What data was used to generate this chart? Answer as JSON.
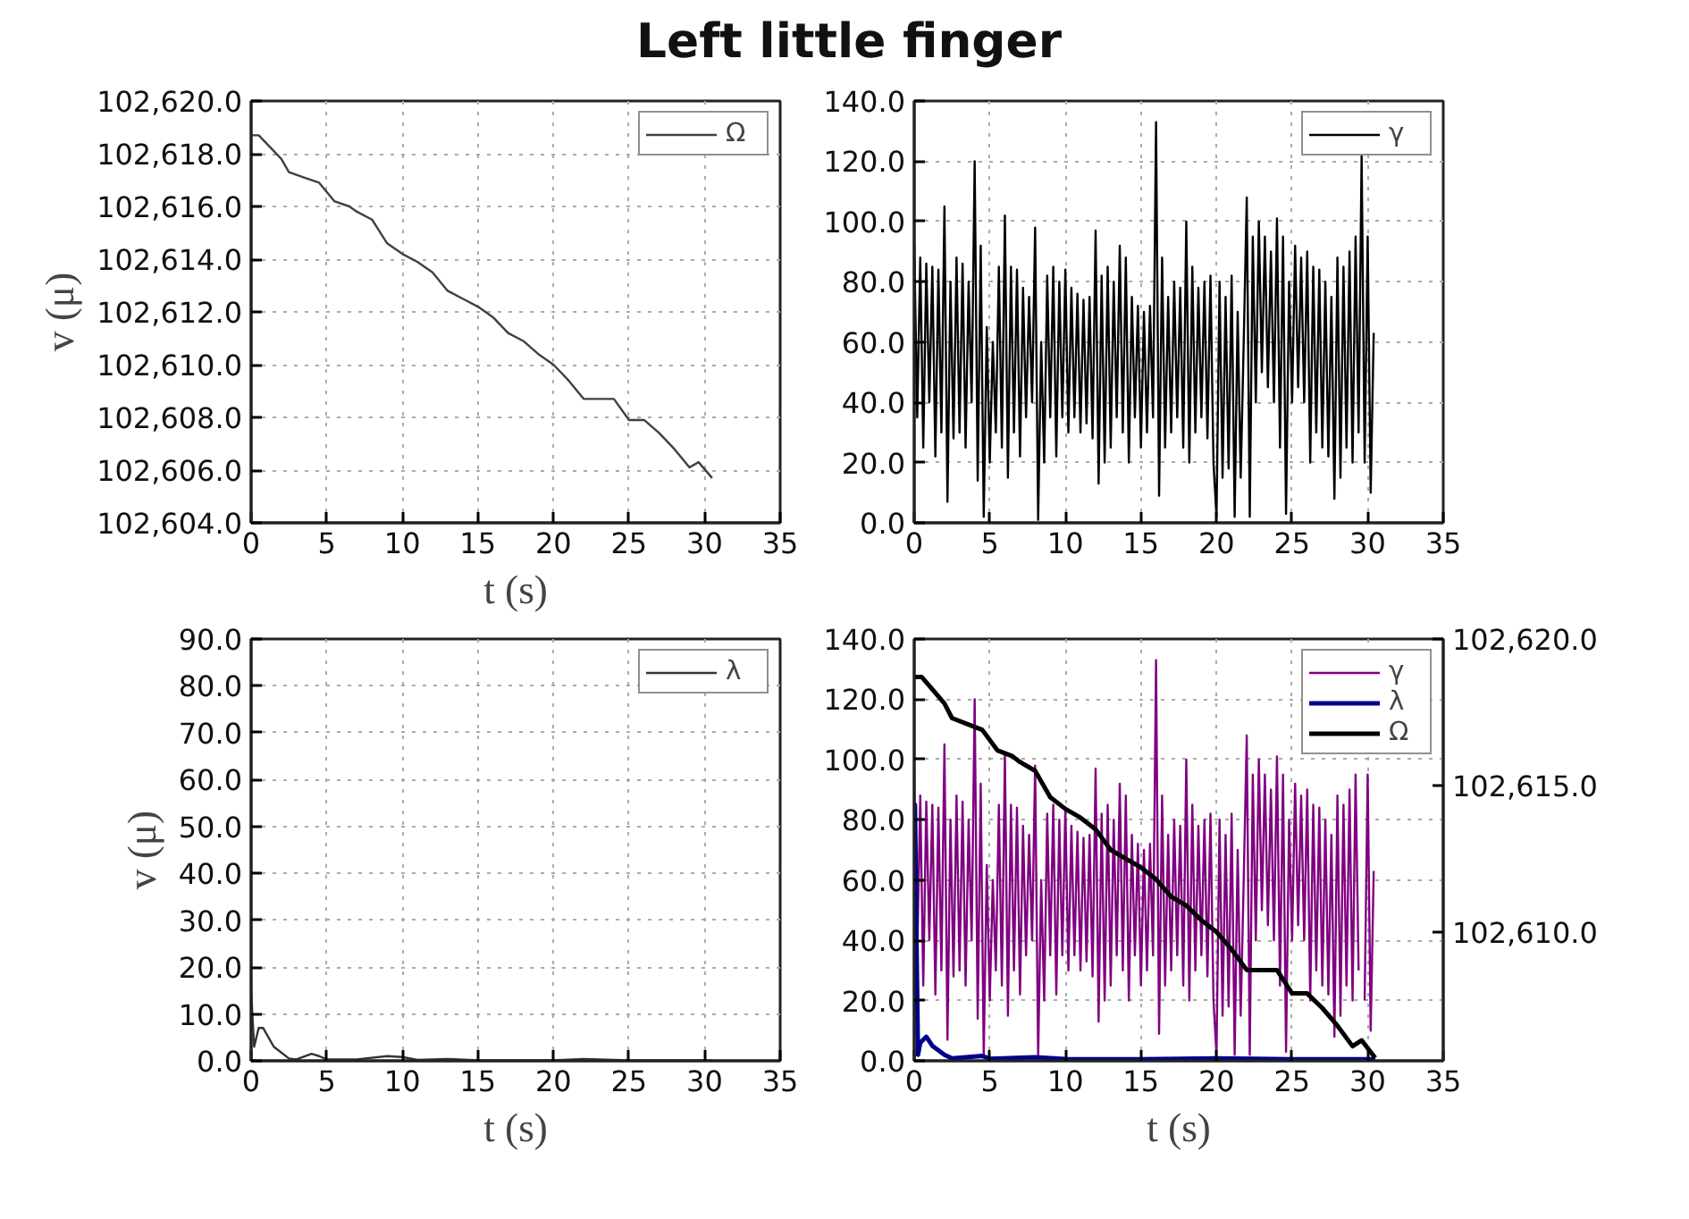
{
  "chart_data": [
    {
      "type": "line",
      "title": "Left little finger",
      "xlabel": "t (s)",
      "ylabel": "v (μ)",
      "xlim": [
        0,
        35
      ],
      "xticks": [
        0,
        5,
        10,
        15,
        20,
        25,
        30,
        35
      ],
      "ylim": [
        102604,
        102620
      ],
      "yticks": [
        {
          "value": 102604,
          "label": "102,604.0"
        },
        {
          "value": 102606,
          "label": "102,606.0"
        },
        {
          "value": 102608,
          "label": "102,608.0"
        },
        {
          "value": 102610,
          "label": "102,610.0"
        },
        {
          "value": 102612,
          "label": "102,612.0"
        },
        {
          "value": 102614,
          "label": "102,614.0"
        },
        {
          "value": 102616,
          "label": "102,616.0"
        },
        {
          "value": 102618,
          "label": "102,618.0"
        },
        {
          "value": 102620,
          "label": "102,620.0"
        }
      ],
      "grid": true,
      "legend": "top right",
      "series": [
        {
          "name": "Ω",
          "color": "#404040",
          "x": [
            0,
            0.5,
            1,
            2,
            2.5,
            3.5,
            4.5,
            5.5,
            6.5,
            7,
            8,
            9,
            10,
            11,
            12,
            13,
            14,
            15,
            16,
            17,
            18,
            19,
            20,
            21,
            22,
            23,
            24,
            25,
            26,
            27,
            28,
            29,
            29.6,
            30.5
          ],
          "values": [
            102618.7,
            102618.7,
            102618.4,
            102617.8,
            102617.3,
            102617.1,
            102616.9,
            102616.2,
            102616.0,
            102615.8,
            102615.5,
            102614.6,
            102614.2,
            102613.9,
            102613.5,
            102612.8,
            102612.5,
            102612.2,
            102611.8,
            102611.2,
            102610.9,
            102610.4,
            102610.0,
            102609.4,
            102608.7,
            102608.7,
            102608.7,
            102607.9,
            102607.9,
            102607.4,
            102606.8,
            102606.1,
            102606.3,
            102605.7
          ]
        }
      ]
    },
    {
      "type": "line",
      "xlim": [
        0,
        35
      ],
      "xticks": [
        0,
        5,
        10,
        15,
        20,
        25,
        30,
        35
      ],
      "ylim": [
        0,
        140
      ],
      "yticks": [
        {
          "value": 0,
          "label": "0.0"
        },
        {
          "value": 20,
          "label": "20.0"
        },
        {
          "value": 40,
          "label": "40.0"
        },
        {
          "value": 60,
          "label": "60.0"
        },
        {
          "value": 80,
          "label": "80.0"
        },
        {
          "value": 100,
          "label": "100.0"
        },
        {
          "value": 120,
          "label": "120.0"
        },
        {
          "value": 140,
          "label": "140.0"
        }
      ],
      "grid": true,
      "legend": "top right",
      "series": [
        {
          "name": "γ",
          "color": "#000000",
          "x": [
            0,
            0.2,
            0.4,
            0.6,
            0.8,
            1,
            1.2,
            1.4,
            1.6,
            1.8,
            2,
            2.2,
            2.4,
            2.6,
            2.8,
            3,
            3.2,
            3.4,
            3.6,
            3.8,
            4,
            4.2,
            4.4,
            4.6,
            4.8,
            5,
            5.2,
            5.4,
            5.6,
            5.8,
            6,
            6.2,
            6.4,
            6.6,
            6.8,
            7,
            7.2,
            7.4,
            7.6,
            7.8,
            8,
            8.2,
            8.4,
            8.6,
            8.8,
            9,
            9.2,
            9.4,
            9.6,
            9.8,
            10,
            10.2,
            10.4,
            10.6,
            10.8,
            11,
            11.2,
            11.4,
            11.6,
            11.8,
            12,
            12.2,
            12.4,
            12.6,
            12.8,
            13,
            13.2,
            13.4,
            13.6,
            13.8,
            14,
            14.2,
            14.4,
            14.6,
            14.8,
            15,
            15.2,
            15.4,
            15.6,
            15.8,
            16,
            16.2,
            16.4,
            16.6,
            16.8,
            17,
            17.2,
            17.4,
            17.6,
            17.8,
            18,
            18.2,
            18.4,
            18.6,
            18.8,
            19,
            19.2,
            19.4,
            19.6,
            19.8,
            20,
            20.2,
            20.4,
            20.6,
            20.8,
            21,
            21.2,
            21.4,
            21.6,
            21.8,
            22,
            22.2,
            22.4,
            22.6,
            22.8,
            23,
            23.2,
            23.4,
            23.6,
            23.8,
            24,
            24.2,
            24.4,
            24.6,
            24.8,
            25,
            25.2,
            25.4,
            25.6,
            25.8,
            26,
            26.2,
            26.4,
            26.6,
            26.8,
            27,
            27.2,
            27.4,
            27.6,
            27.8,
            28,
            28.2,
            28.4,
            28.6,
            28.8,
            29,
            29.2,
            29.4,
            29.6,
            29.8,
            30,
            30.2,
            30.4
          ],
          "values": [
            93,
            35,
            88,
            25,
            86,
            40,
            85,
            22,
            84,
            30,
            105,
            7,
            80,
            28,
            88,
            30,
            86,
            25,
            80,
            40,
            120,
            14,
            92,
            2,
            65,
            20,
            60,
            30,
            85,
            25,
            102,
            15,
            85,
            30,
            84,
            22,
            78,
            35,
            75,
            40,
            98,
            1,
            60,
            20,
            82,
            35,
            85,
            22,
            80,
            35,
            84,
            30,
            78,
            35,
            76,
            30,
            74,
            33,
            75,
            28,
            97,
            13,
            82,
            20,
            85,
            25,
            80,
            35,
            92,
            30,
            88,
            20,
            75,
            35,
            72,
            25,
            70,
            30,
            72,
            35,
            133,
            9,
            88,
            25,
            75,
            30,
            80,
            35,
            78,
            25,
            100,
            20,
            85,
            30,
            78,
            35,
            80,
            28,
            82,
            20,
            2,
            80,
            15,
            75,
            18,
            82,
            2,
            70,
            15,
            60,
            108,
            2,
            95,
            40,
            100,
            50,
            95,
            45,
            90,
            40,
            101,
            25,
            95,
            3,
            80,
            40,
            92,
            45,
            88,
            40,
            90,
            20,
            85,
            30,
            84,
            25,
            80,
            22,
            75,
            8,
            88,
            15,
            85,
            25,
            90,
            20,
            95,
            30,
            122,
            20,
            95,
            10,
            63
          ]
        }
      ]
    },
    {
      "type": "line",
      "xlabel": "t (s)",
      "ylabel": "v (μ)",
      "xlim": [
        0,
        35
      ],
      "xticks": [
        0,
        5,
        10,
        15,
        20,
        25,
        30,
        35
      ],
      "ylim": [
        0,
        90
      ],
      "yticks": [
        {
          "value": 0,
          "label": "0.0"
        },
        {
          "value": 10,
          "label": "10.0"
        },
        {
          "value": 20,
          "label": "20.0"
        },
        {
          "value": 30,
          "label": "30.0"
        },
        {
          "value": 40,
          "label": "40.0"
        },
        {
          "value": 50,
          "label": "50.0"
        },
        {
          "value": 60,
          "label": "60.0"
        },
        {
          "value": 70,
          "label": "70.0"
        },
        {
          "value": 80,
          "label": "80.0"
        },
        {
          "value": 90,
          "label": "90.0"
        }
      ],
      "grid": true,
      "legend": "top right",
      "series": [
        {
          "name": "λ",
          "color": "#333333",
          "x": [
            0,
            0.2,
            0.5,
            0.8,
            1.5,
            2.5,
            3,
            4,
            4.5,
            5,
            7,
            9,
            10,
            11,
            13,
            15,
            20,
            22,
            25,
            30.5
          ],
          "values": [
            15,
            3,
            7,
            7,
            3,
            0.5,
            0.3,
            1.5,
            1.0,
            0.3,
            0.3,
            1.0,
            0.8,
            0.2,
            0.4,
            0.1,
            0.1,
            0.4,
            0.1,
            0.1
          ]
        }
      ]
    },
    {
      "type": "line",
      "xlabel": "t (s)",
      "xlim": [
        0,
        35
      ],
      "xticks": [
        0,
        5,
        10,
        15,
        20,
        25,
        30,
        35
      ],
      "ylim": [
        0,
        140
      ],
      "yticks": [
        {
          "value": 0,
          "label": "0.0"
        },
        {
          "value": 20,
          "label": "20.0"
        },
        {
          "value": 40,
          "label": "40.0"
        },
        {
          "value": 60,
          "label": "60.0"
        },
        {
          "value": 80,
          "label": "80.0"
        },
        {
          "value": 100,
          "label": "100.0"
        },
        {
          "value": 120,
          "label": "120.0"
        },
        {
          "value": 140,
          "label": "140.0"
        }
      ],
      "y2lim": [
        102605.6,
        102620
      ],
      "y2ticks": [
        {
          "value": 102610,
          "label": "102,610.0"
        },
        {
          "value": 102615,
          "label": "102,615.0"
        },
        {
          "value": 102620,
          "label": "102,620.0"
        }
      ],
      "grid": true,
      "legend": "top right",
      "series": [
        {
          "name": "γ",
          "color": "#800080",
          "x": [
            0,
            0.2,
            0.4,
            0.6,
            0.8,
            1,
            1.2,
            1.4,
            1.6,
            1.8,
            2,
            2.2,
            2.4,
            2.6,
            2.8,
            3,
            3.2,
            3.4,
            3.6,
            3.8,
            4,
            4.2,
            4.4,
            4.6,
            4.8,
            5,
            5.2,
            5.4,
            5.6,
            5.8,
            6,
            6.2,
            6.4,
            6.6,
            6.8,
            7,
            7.2,
            7.4,
            7.6,
            7.8,
            8,
            8.2,
            8.4,
            8.6,
            8.8,
            9,
            9.2,
            9.4,
            9.6,
            9.8,
            10,
            10.2,
            10.4,
            10.6,
            10.8,
            11,
            11.2,
            11.4,
            11.6,
            11.8,
            12,
            12.2,
            12.4,
            12.6,
            12.8,
            13,
            13.2,
            13.4,
            13.6,
            13.8,
            14,
            14.2,
            14.4,
            14.6,
            14.8,
            15,
            15.2,
            15.4,
            15.6,
            15.8,
            16,
            16.2,
            16.4,
            16.6,
            16.8,
            17,
            17.2,
            17.4,
            17.6,
            17.8,
            18,
            18.2,
            18.4,
            18.6,
            18.8,
            19,
            19.2,
            19.4,
            19.6,
            19.8,
            20,
            20.2,
            20.4,
            20.6,
            20.8,
            21,
            21.2,
            21.4,
            21.6,
            21.8,
            22,
            22.2,
            22.4,
            22.6,
            22.8,
            23,
            23.2,
            23.4,
            23.6,
            23.8,
            24,
            24.2,
            24.4,
            24.6,
            24.8,
            25,
            25.2,
            25.4,
            25.6,
            25.8,
            26,
            26.2,
            26.4,
            26.6,
            26.8,
            27,
            27.2,
            27.4,
            27.6,
            27.8,
            28,
            28.2,
            28.4,
            28.6,
            28.8,
            29,
            29.2,
            29.4,
            29.6,
            29.8,
            30,
            30.2,
            30.4
          ],
          "values": [
            93,
            35,
            88,
            25,
            86,
            40,
            85,
            22,
            84,
            30,
            105,
            7,
            80,
            28,
            88,
            30,
            86,
            25,
            80,
            40,
            120,
            14,
            92,
            2,
            65,
            20,
            60,
            30,
            85,
            25,
            102,
            15,
            85,
            30,
            84,
            22,
            78,
            35,
            75,
            40,
            98,
            1,
            60,
            20,
            82,
            35,
            85,
            22,
            80,
            35,
            84,
            30,
            78,
            35,
            76,
            30,
            74,
            33,
            75,
            28,
            97,
            13,
            82,
            20,
            85,
            25,
            80,
            35,
            92,
            30,
            88,
            20,
            75,
            35,
            72,
            25,
            70,
            30,
            72,
            35,
            133,
            9,
            88,
            25,
            75,
            30,
            80,
            35,
            78,
            25,
            100,
            20,
            85,
            30,
            78,
            35,
            80,
            28,
            82,
            20,
            2,
            80,
            15,
            75,
            18,
            82,
            2,
            70,
            15,
            60,
            108,
            2,
            95,
            40,
            100,
            50,
            95,
            45,
            90,
            40,
            101,
            25,
            95,
            3,
            80,
            40,
            92,
            45,
            88,
            40,
            90,
            20,
            85,
            30,
            84,
            25,
            80,
            22,
            75,
            8,
            88,
            15,
            85,
            25,
            90,
            20,
            95,
            30,
            null,
            20,
            95,
            10,
            63
          ]
        },
        {
          "name": "λ",
          "color": "#00008b",
          "x": [
            0,
            0.05,
            0.15,
            0.25,
            0.4,
            0.8,
            1.2,
            2,
            2.5,
            4.5,
            5,
            8,
            10,
            15,
            20,
            25,
            30.5
          ],
          "values": [
            70,
            85,
            40,
            2,
            6,
            8,
            5,
            2,
            0.8,
            1.6,
            0.7,
            1.2,
            0.6,
            0.5,
            0.8,
            0.5,
            0.5
          ]
        },
        {
          "name": "Ω",
          "color": "#000000",
          "axis": "y2",
          "x": [
            0,
            0.5,
            1,
            2,
            2.5,
            3.5,
            4.5,
            5.5,
            6.5,
            7,
            8,
            9,
            10,
            11,
            12,
            13,
            14,
            15,
            16,
            17,
            18,
            19,
            20,
            21,
            22,
            23,
            24,
            25,
            26,
            27,
            28,
            29,
            29.6,
            30.5
          ],
          "values": [
            102618.7,
            102618.7,
            102618.4,
            102617.8,
            102617.3,
            102617.1,
            102616.9,
            102616.2,
            102616.0,
            102615.8,
            102615.5,
            102614.6,
            102614.2,
            102613.9,
            102613.5,
            102612.8,
            102612.5,
            102612.2,
            102611.8,
            102611.2,
            102610.9,
            102610.4,
            102610.0,
            102609.4,
            102608.7,
            102608.7,
            102608.7,
            102607.9,
            102607.9,
            102607.4,
            102606.8,
            102606.1,
            102606.3,
            102605.7
          ]
        }
      ]
    }
  ]
}
